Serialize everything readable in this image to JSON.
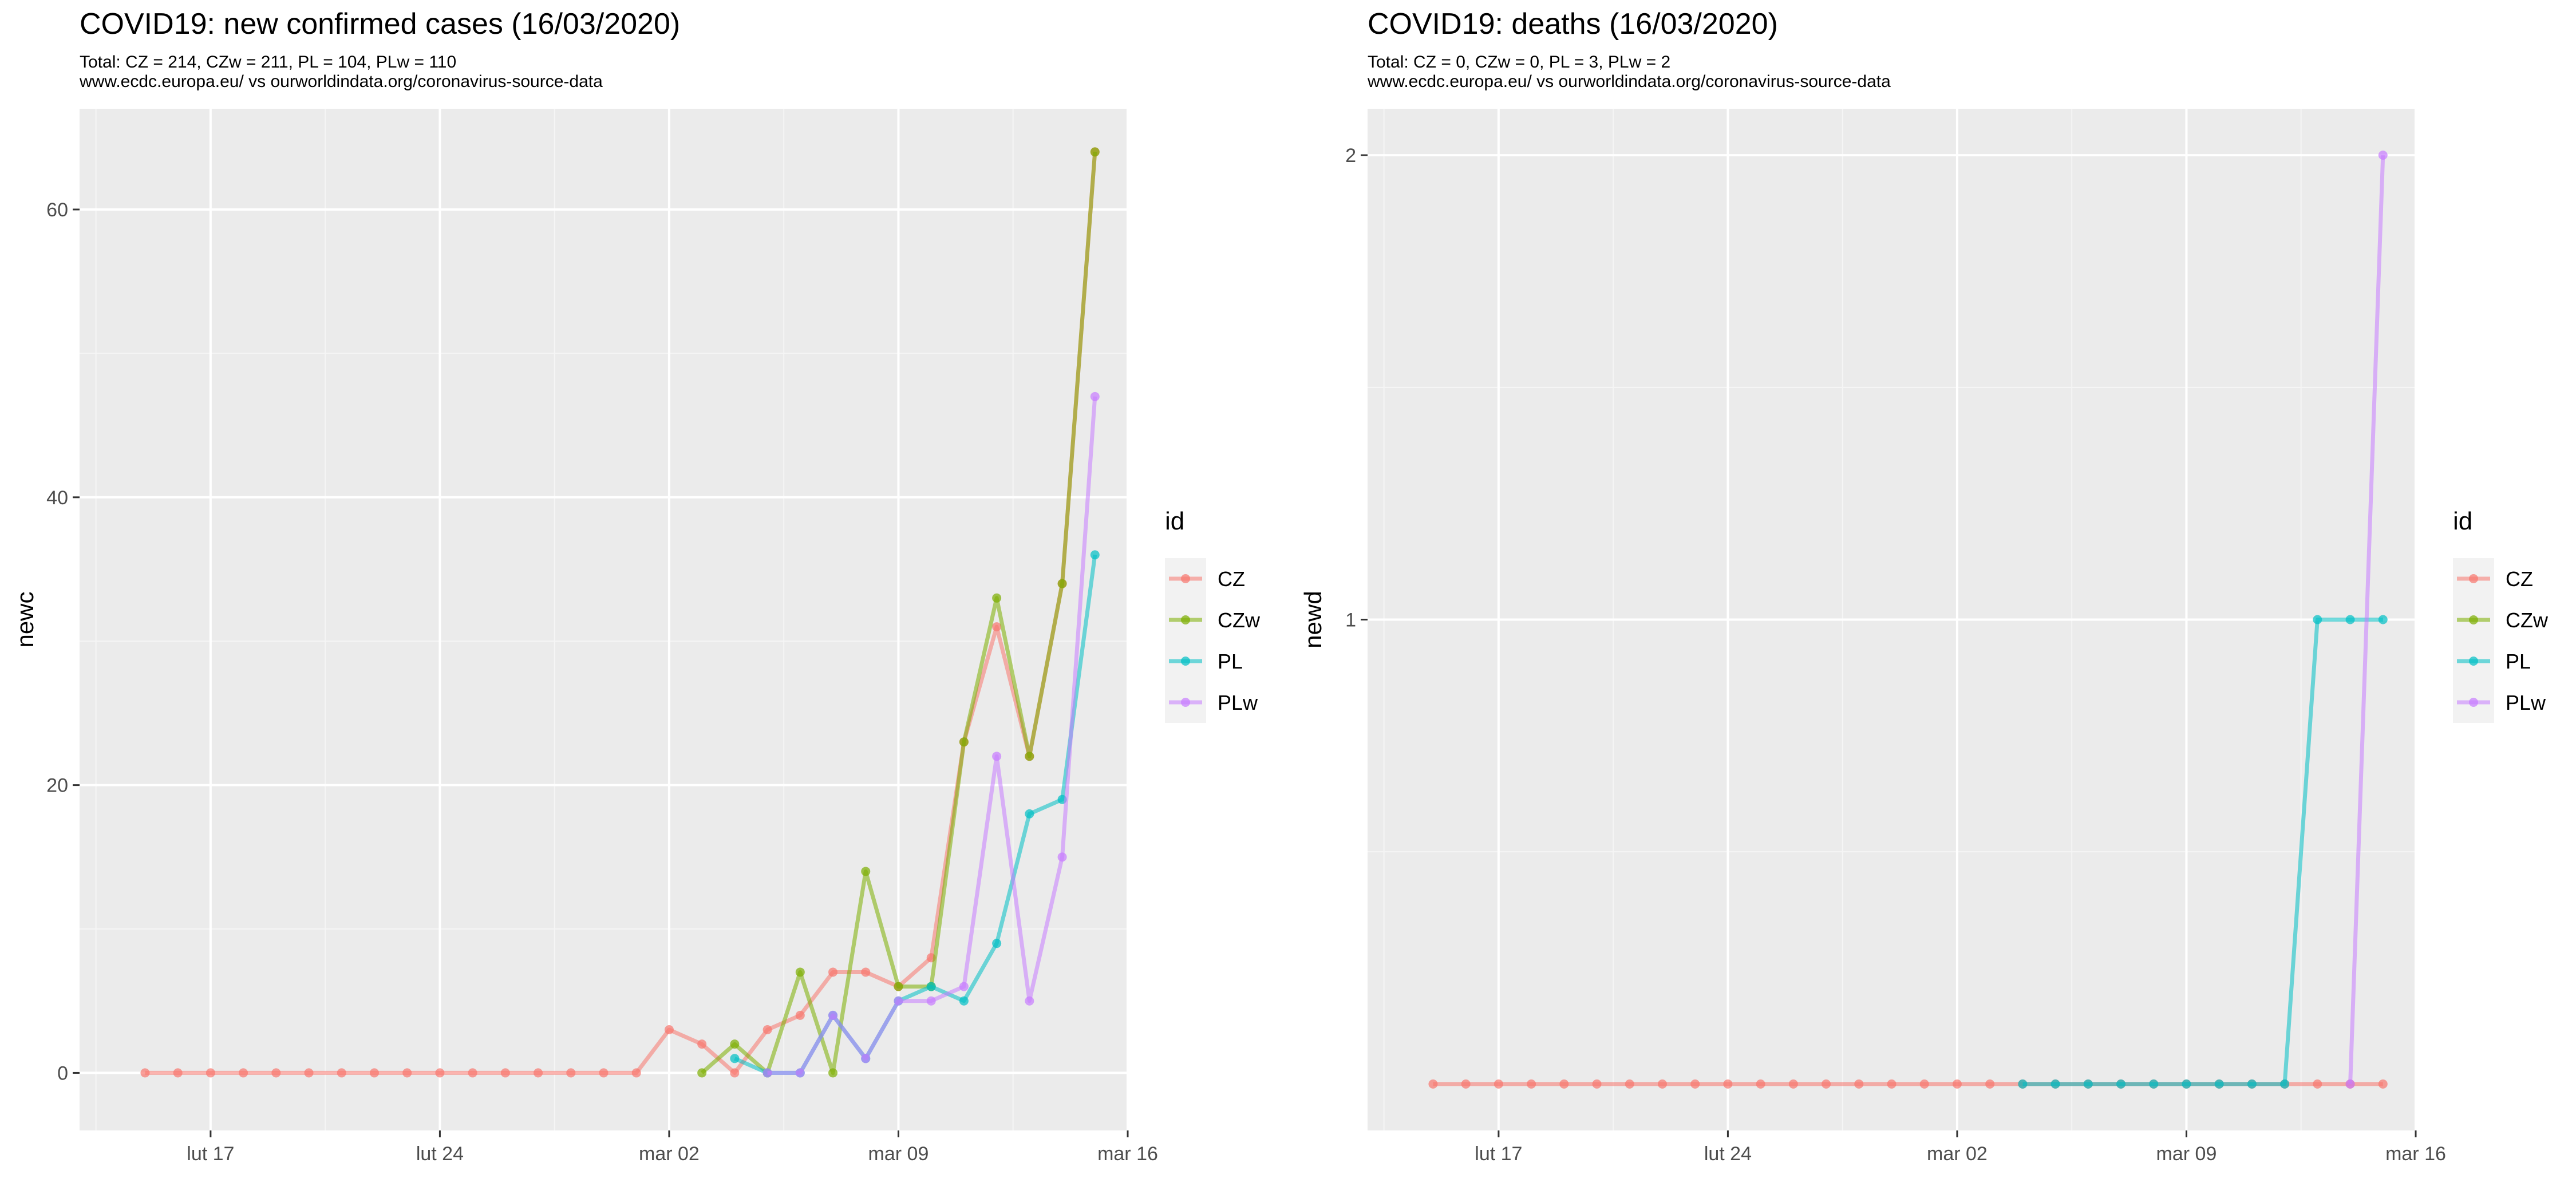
{
  "charts": [
    {
      "title": "COVID19: new confirmed cases (16/03/2020)",
      "subtitle_line1": "Total: CZ = 214, CZw = 211, PL = 104, PLw = 110",
      "subtitle_line2": "www.ecdc.europa.eu/ vs ourworldindata.org/coronavirus-source-data"
    },
    {
      "title": "COVID19: deaths (16/03/2020)",
      "subtitle_line1": "Total: CZ = 0, CZw = 0, PL = 3, PLw = 2",
      "subtitle_line2": "www.ecdc.europa.eu/ vs ourworldindata.org/coronavirus-source-data"
    }
  ],
  "chart_data": [
    {
      "type": "line",
      "title": "COVID19: new confirmed cases (16/03/2020)",
      "xlabel": "",
      "ylabel": "newc",
      "x_axis": "date",
      "xlim": [
        "2020-02-13",
        "2020-03-16"
      ],
      "ylim": [
        -4,
        67
      ],
      "x_ticks": [
        {
          "date": "2020-02-17",
          "label": "lut 17"
        },
        {
          "date": "2020-02-24",
          "label": "lut 24"
        },
        {
          "date": "2020-03-02",
          "label": "mar 02"
        },
        {
          "date": "2020-03-09",
          "label": "mar 09"
        },
        {
          "date": "2020-03-16",
          "label": "mar 16"
        }
      ],
      "y_ticks": [
        0,
        20,
        40,
        60
      ],
      "grid": true,
      "legend": {
        "title": "id",
        "position": "right"
      },
      "series": [
        {
          "name": "CZ",
          "color": "#F8766D",
          "x": [
            "2020-02-15",
            "2020-02-16",
            "2020-02-17",
            "2020-02-18",
            "2020-02-19",
            "2020-02-20",
            "2020-02-21",
            "2020-02-22",
            "2020-02-23",
            "2020-02-24",
            "2020-02-25",
            "2020-02-26",
            "2020-02-27",
            "2020-02-28",
            "2020-02-29",
            "2020-03-01",
            "2020-03-02",
            "2020-03-03",
            "2020-03-04",
            "2020-03-05",
            "2020-03-06",
            "2020-03-07",
            "2020-03-08",
            "2020-03-09",
            "2020-03-10",
            "2020-03-11",
            "2020-03-12",
            "2020-03-13",
            "2020-03-14",
            "2020-03-15"
          ],
          "y": [
            0,
            0,
            0,
            0,
            0,
            0,
            0,
            0,
            0,
            0,
            0,
            0,
            0,
            0,
            0,
            0,
            3,
            2,
            0,
            3,
            4,
            7,
            7,
            6,
            8,
            23,
            31,
            22,
            34,
            64
          ]
        },
        {
          "name": "CZw",
          "color": "#7CAE00",
          "x": [
            "2020-03-03",
            "2020-03-04",
            "2020-03-05",
            "2020-03-06",
            "2020-03-07",
            "2020-03-08",
            "2020-03-09",
            "2020-03-10",
            "2020-03-11",
            "2020-03-12",
            "2020-03-13",
            "2020-03-14",
            "2020-03-15"
          ],
          "y": [
            0,
            2,
            0,
            7,
            0,
            14,
            6,
            6,
            23,
            33,
            22,
            34,
            64
          ]
        },
        {
          "name": "PL",
          "color": "#00BFC4",
          "x": [
            "2020-03-04",
            "2020-03-05",
            "2020-03-06",
            "2020-03-07",
            "2020-03-08",
            "2020-03-09",
            "2020-03-10",
            "2020-03-11",
            "2020-03-12",
            "2020-03-13",
            "2020-03-14",
            "2020-03-15"
          ],
          "y": [
            1,
            0,
            0,
            4,
            1,
            5,
            6,
            5,
            9,
            18,
            19,
            36
          ]
        },
        {
          "name": "PLw",
          "color": "#C77CFF",
          "x": [
            "2020-03-05",
            "2020-03-06",
            "2020-03-07",
            "2020-03-08",
            "2020-03-09",
            "2020-03-10",
            "2020-03-11",
            "2020-03-12",
            "2020-03-13",
            "2020-03-14",
            "2020-03-15"
          ],
          "y": [
            0,
            0,
            4,
            1,
            5,
            5,
            6,
            22,
            5,
            15,
            47
          ]
        }
      ]
    },
    {
      "type": "line",
      "title": "COVID19: deaths (16/03/2020)",
      "xlabel": "",
      "ylabel": "newd",
      "x_axis": "date",
      "xlim": [
        "2020-02-13",
        "2020-03-16"
      ],
      "ylim": [
        -0.1,
        2.1
      ],
      "x_ticks": [
        {
          "date": "2020-02-17",
          "label": "lut 17"
        },
        {
          "date": "2020-02-24",
          "label": "lut 24"
        },
        {
          "date": "2020-03-02",
          "label": "mar 02"
        },
        {
          "date": "2020-03-09",
          "label": "mar 09"
        },
        {
          "date": "2020-03-16",
          "label": "mar 16"
        }
      ],
      "y_ticks": [
        1,
        2
      ],
      "grid": true,
      "legend": {
        "title": "id",
        "position": "right"
      },
      "series": [
        {
          "name": "CZ",
          "color": "#F8766D",
          "x": [
            "2020-02-15",
            "2020-02-16",
            "2020-02-17",
            "2020-02-18",
            "2020-02-19",
            "2020-02-20",
            "2020-02-21",
            "2020-02-22",
            "2020-02-23",
            "2020-02-24",
            "2020-02-25",
            "2020-02-26",
            "2020-02-27",
            "2020-02-28",
            "2020-02-29",
            "2020-03-01",
            "2020-03-02",
            "2020-03-03",
            "2020-03-04",
            "2020-03-05",
            "2020-03-06",
            "2020-03-07",
            "2020-03-08",
            "2020-03-09",
            "2020-03-10",
            "2020-03-11",
            "2020-03-12",
            "2020-03-13",
            "2020-03-14",
            "2020-03-15"
          ],
          "y": [
            0,
            0,
            0,
            0,
            0,
            0,
            0,
            0,
            0,
            0,
            0,
            0,
            0,
            0,
            0,
            0,
            0,
            0,
            0,
            0,
            0,
            0,
            0,
            0,
            0,
            0,
            0,
            0,
            0,
            0
          ]
        },
        {
          "name": "CZw",
          "color": "#7CAE00",
          "x": [],
          "y": []
        },
        {
          "name": "PL",
          "color": "#00BFC4",
          "x": [
            "2020-03-04",
            "2020-03-05",
            "2020-03-06",
            "2020-03-07",
            "2020-03-08",
            "2020-03-09",
            "2020-03-10",
            "2020-03-11",
            "2020-03-12",
            "2020-03-13",
            "2020-03-14",
            "2020-03-15"
          ],
          "y": [
            0,
            0,
            0,
            0,
            0,
            0,
            0,
            0,
            0,
            1,
            1,
            1
          ]
        },
        {
          "name": "PLw",
          "color": "#C77CFF",
          "x": [
            "2020-03-14",
            "2020-03-15"
          ],
          "y": [
            0,
            2
          ]
        }
      ]
    }
  ]
}
